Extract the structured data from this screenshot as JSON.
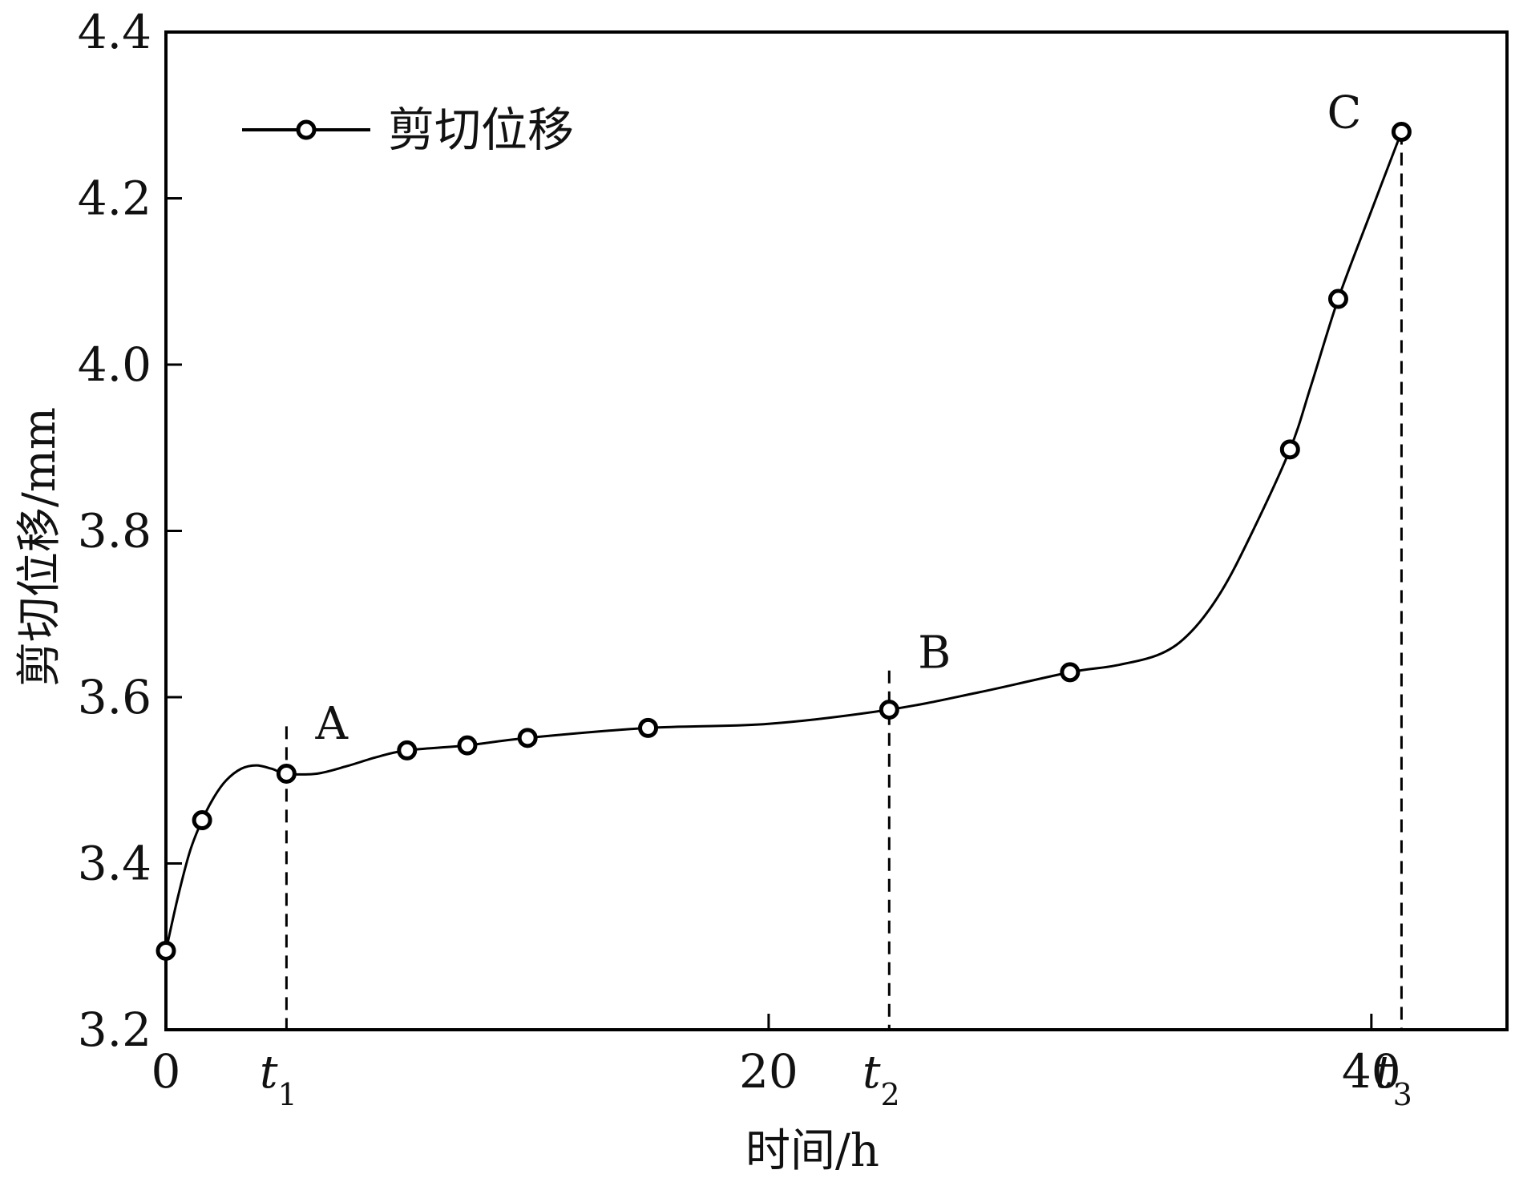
{
  "chart_data": {
    "type": "line",
    "xlabel": "时间/h",
    "ylabel": "剪切位移/mm",
    "xlim": [
      0,
      44.5
    ],
    "ylim": [
      3.2,
      4.4
    ],
    "x_ticks": [
      0,
      20,
      40
    ],
    "x_tick_labels": [
      "0",
      "20",
      "40"
    ],
    "y_ticks": [
      3.2,
      3.4,
      3.6,
      3.8,
      4.0,
      4.2,
      4.4
    ],
    "y_tick_labels": [
      "3.2",
      "3.4",
      "3.6",
      "3.8",
      "4.0",
      "4.2",
      "4.4"
    ],
    "grid": false,
    "legend": {
      "position": "top-left",
      "entries": [
        "剪切位移"
      ]
    },
    "series": [
      {
        "name": "剪切位移",
        "marker": "open-circle",
        "x": [
          0,
          1.2,
          4.0,
          8.0,
          10.0,
          12.0,
          16.0,
          24.0,
          30.0,
          37.3,
          38.9,
          41.0
        ],
        "y": [
          3.295,
          3.452,
          3.508,
          3.536,
          3.542,
          3.551,
          3.563,
          3.585,
          3.63,
          3.898,
          4.079,
          4.28
        ],
        "curve_x": [
          0,
          0.4,
          0.8,
          1.2,
          1.6,
          2.0,
          2.5,
          3.0,
          3.5,
          4.0,
          5.0,
          6.0,
          7.0,
          8.0,
          10.0,
          12.0,
          16.0,
          20.0,
          24.0,
          27.0,
          30.0,
          31.5,
          33.0,
          34.0,
          35.0,
          36.0,
          37.3,
          38.0,
          38.9,
          40.0,
          41.0
        ],
        "curve_y": [
          3.295,
          3.36,
          3.415,
          3.452,
          3.48,
          3.5,
          3.514,
          3.518,
          3.514,
          3.508,
          3.508,
          3.517,
          3.528,
          3.536,
          3.542,
          3.551,
          3.563,
          3.568,
          3.585,
          3.606,
          3.63,
          3.638,
          3.652,
          3.678,
          3.726,
          3.795,
          3.898,
          3.975,
          4.079,
          4.185,
          4.28
        ]
      }
    ],
    "vlines": [
      {
        "x": 4.0,
        "y_top": 3.565,
        "label": "t",
        "sub": "1"
      },
      {
        "x": 24.0,
        "y_top": 3.632,
        "label": "t",
        "sub": "2"
      },
      {
        "x": 41.0,
        "y_top": 4.28,
        "label": "t",
        "sub": "3"
      }
    ],
    "annotations": [
      {
        "text": "A",
        "x": 5.5,
        "y": 3.55
      },
      {
        "text": "B",
        "x": 25.5,
        "y": 3.635
      },
      {
        "text": "C",
        "x": 39.1,
        "y": 4.285
      }
    ],
    "colors": {
      "line": "#000000",
      "marker_fill": "#ffffff",
      "background": "#ffffff"
    }
  }
}
